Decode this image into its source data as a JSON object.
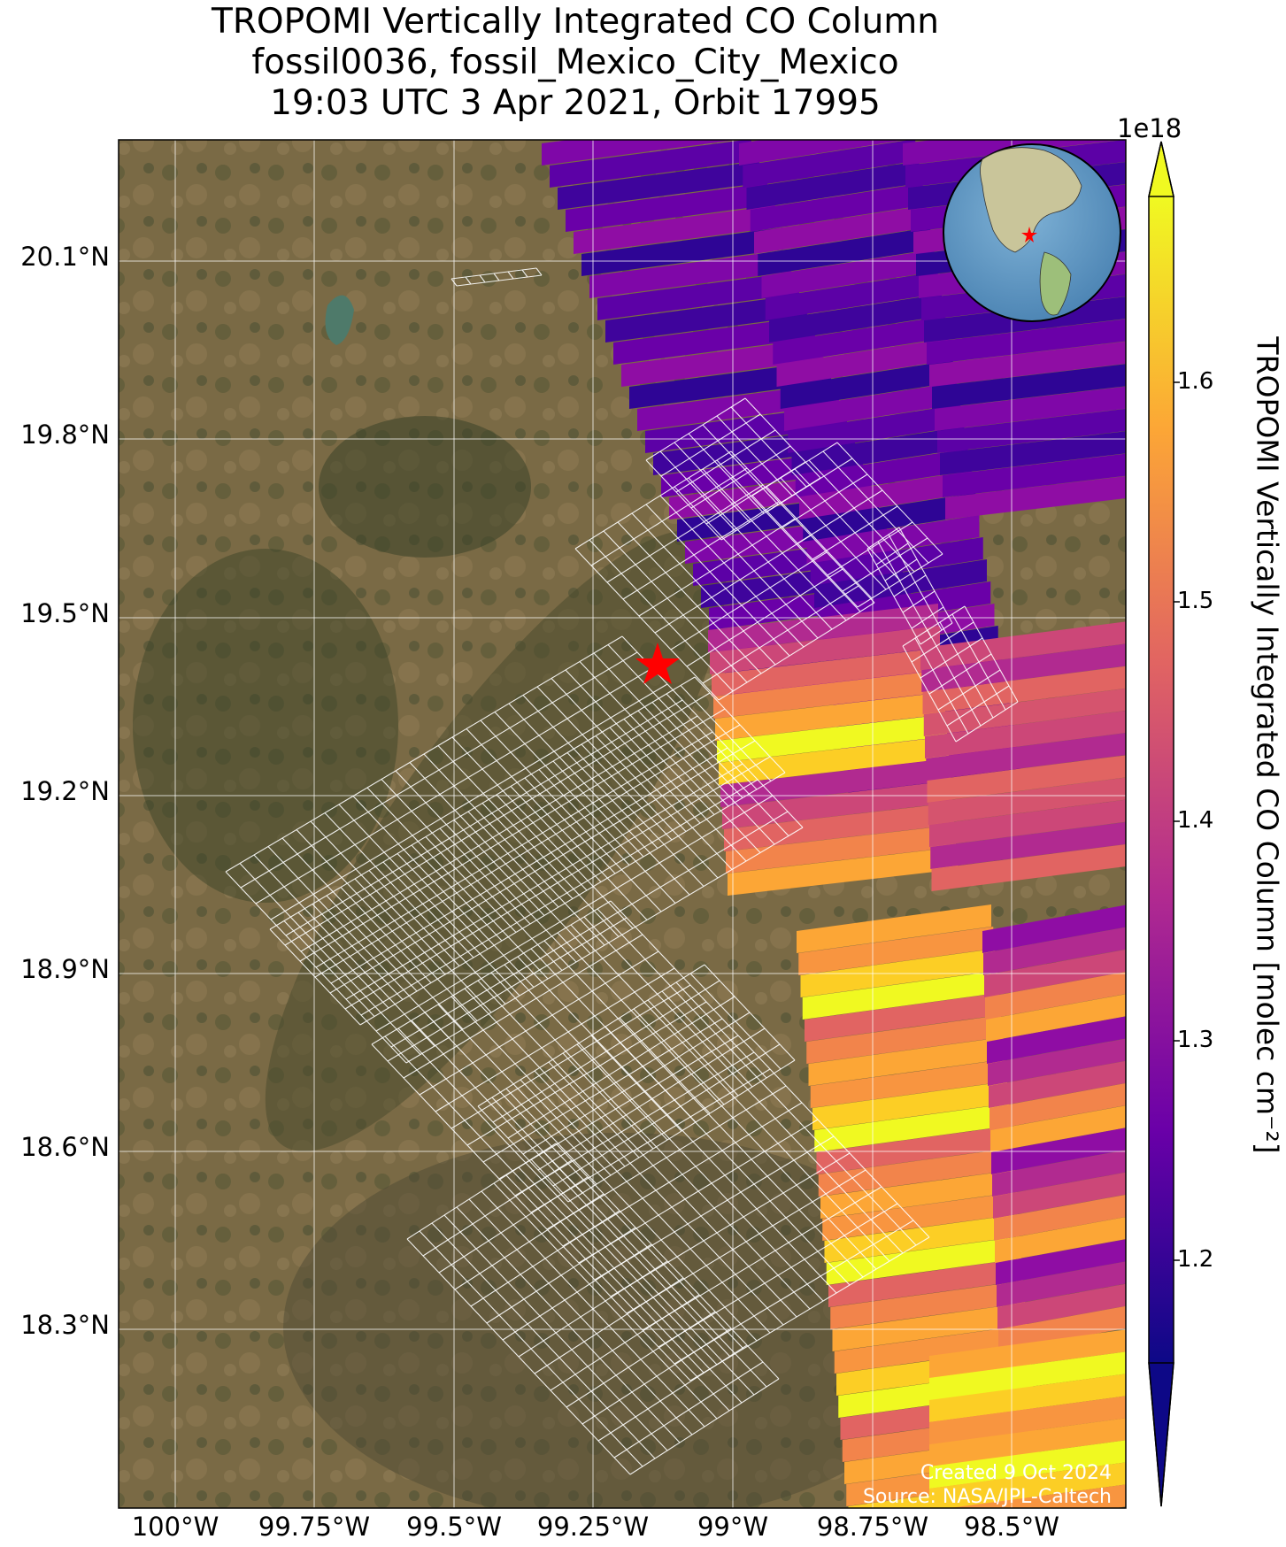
{
  "title": {
    "line1": "TROPOMI Vertically Integrated CO Column",
    "line2": "fossil0036, fossil_Mexico_City_Mexico",
    "line3": "19:03 UTC 3 Apr 2021, Orbit 17995"
  },
  "axes": {
    "lat_ticks": [
      "20.1°N",
      "19.8°N",
      "19.5°N",
      "19.2°N",
      "18.9°N",
      "18.6°N",
      "18.3°N"
    ],
    "lon_ticks": [
      "100°W",
      "99.75°W",
      "99.5°W",
      "99.25°W",
      "99°W",
      "98.75°W",
      "98.5°W"
    ]
  },
  "colorbar": {
    "label": "TROPOMI Vertically Integrated CO Column [molec cm⁻²]",
    "exponent": "1e18",
    "ticks": [
      "1.2",
      "1.3",
      "1.4",
      "1.5",
      "1.6"
    ],
    "colormap": "plasma",
    "range": [
      1.14,
      1.67
    ],
    "extend": "both"
  },
  "credits": {
    "created": "Created 9 Oct 2024",
    "source": "Source: NASA/JPL-Caltech"
  },
  "chart_data": {
    "type": "heatmap",
    "lon_range": [
      -100.1,
      -98.35
    ],
    "lat_range": [
      18.0,
      20.3
    ],
    "target": {
      "lon": -99.15,
      "lat": 19.43,
      "marker": "red-star"
    },
    "inset": "orthographic globe with red-star at target"
  },
  "colors": {
    "star": "#ff0000",
    "grid": "#ffffff",
    "footprints": "#ffffff"
  }
}
